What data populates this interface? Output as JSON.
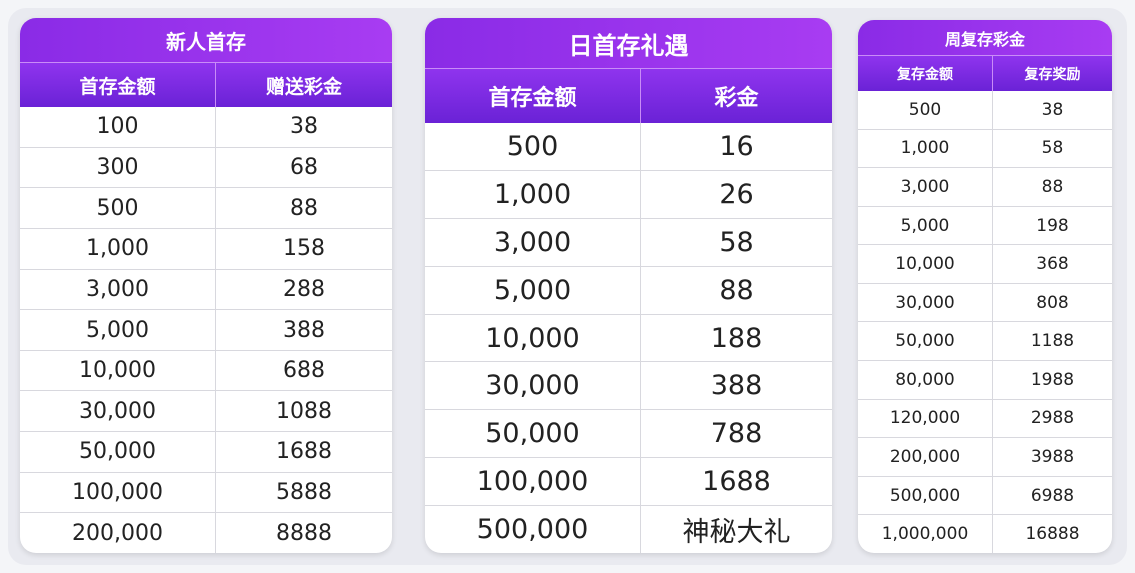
{
  "tables": [
    {
      "title": "新人首存",
      "headers": [
        "首存金额",
        "赠送彩金"
      ],
      "rows": [
        [
          "100",
          "38"
        ],
        [
          "300",
          "68"
        ],
        [
          "500",
          "88"
        ],
        [
          "1,000",
          "158"
        ],
        [
          "3,000",
          "288"
        ],
        [
          "5,000",
          "388"
        ],
        [
          "10,000",
          "688"
        ],
        [
          "30,000",
          "1088"
        ],
        [
          "50,000",
          "1688"
        ],
        [
          "100,000",
          "5888"
        ],
        [
          "200,000",
          "8888"
        ]
      ]
    },
    {
      "title": "日首存礼遇",
      "headers": [
        "首存金额",
        "彩金"
      ],
      "rows": [
        [
          "500",
          "16"
        ],
        [
          "1,000",
          "26"
        ],
        [
          "3,000",
          "58"
        ],
        [
          "5,000",
          "88"
        ],
        [
          "10,000",
          "188"
        ],
        [
          "30,000",
          "388"
        ],
        [
          "50,000",
          "788"
        ],
        [
          "100,000",
          "1688"
        ],
        [
          "500,000",
          "神秘大礼"
        ]
      ]
    },
    {
      "title": "周复存彩金",
      "headers": [
        "复存金额",
        "复存奖励"
      ],
      "rows": [
        [
          "500",
          "38"
        ],
        [
          "1,000",
          "58"
        ],
        [
          "3,000",
          "88"
        ],
        [
          "5,000",
          "198"
        ],
        [
          "10,000",
          "368"
        ],
        [
          "30,000",
          "808"
        ],
        [
          "50,000",
          "1188"
        ],
        [
          "80,000",
          "1988"
        ],
        [
          "120,000",
          "2988"
        ],
        [
          "200,000",
          "3988"
        ],
        [
          "500,000",
          "6988"
        ],
        [
          "1,000,000",
          "16888"
        ]
      ]
    }
  ],
  "colors": {
    "header_purple": "#8a2be6",
    "header_dark": "#6a22d6"
  }
}
